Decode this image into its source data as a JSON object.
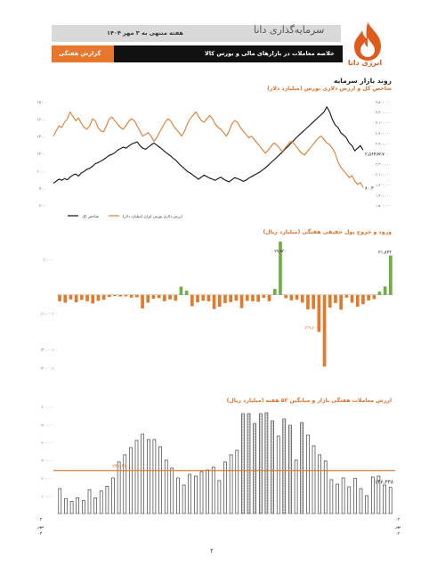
{
  "header": {
    "date_line": "هفته منتهی به ۳ مهر ۱۴۰۴",
    "brand": "سرمایه‌گذاری دانا",
    "report_label": "گزارش هفتگی",
    "title": "خلاصه معاملات در بازارهای مالی و بورس کالا",
    "logo_text": "انرژی دانا"
  },
  "section_title": "روند بازار سرمایه",
  "page_number": "۲",
  "colors": {
    "orange": "#e07b2e",
    "green": "#70ad47",
    "black": "#111111",
    "accent": "#d9722a"
  },
  "chart_data": [
    {
      "type": "line",
      "title": "شاخص کل و ارزش دلاری بورس (میلیارد دلار)",
      "left_ticks": [
        "۱۸۰.۰",
        "۱۶۰.۰",
        "۱۴۰.۰",
        "۱۲۰.۰",
        "۱۰۰.۰",
        "۸۰.۰",
        "۶۰.۰"
      ],
      "left_ylim": [
        60,
        180
      ],
      "right_ticks": [
        "۳,۵۰۰,۰۰۰",
        "۳,۳۰۰,۰۰۰",
        "۳,۱۰۰,۰۰۰",
        "۲,۹۰۰,۰۰۰",
        "۲,۷۰۰,۰۰۰",
        "۲,۵۰۰,۰۰۰",
        "۲,۳۰۰,۰۰۰",
        "۲,۱۰۰,۰۰۰",
        "۱,۹۰۰,۰۰۰",
        "۱,۷۰۰,۰۰۰",
        "۱,۵۰۰,۰۰۰"
      ],
      "right_ylim": [
        1500000,
        3500000
      ],
      "last_labels": {
        "index": "۲,۵۶۴,۲۱۷",
        "dollar": "۸۰.۳"
      },
      "legend": [
        {
          "name": "شاخص کل",
          "color": "#111111"
        },
        {
          "name": "ارزش دلاری بورس ایران (میلیارد دلار)",
          "color": "#e07b2e"
        }
      ],
      "series": [
        {
          "name": "شاخص کل",
          "axis": "right",
          "values": [
            1920000,
            1960000,
            2000000,
            1980000,
            2010000,
            1990000,
            2040000,
            2080000,
            2100000,
            2060000,
            2120000,
            2150000,
            2190000,
            2210000,
            2250000,
            2300000,
            2320000,
            2350000,
            2380000,
            2420000,
            2460000,
            2480000,
            2510000,
            2560000,
            2590000,
            2620000,
            2600000,
            2640000,
            2680000,
            2700000,
            2720000,
            2650000,
            2600000,
            2580000,
            2620000,
            2660000,
            2700000,
            2660000,
            2620000,
            2580000,
            2530000,
            2490000,
            2450000,
            2400000,
            2360000,
            2300000,
            2250000,
            2200000,
            2150000,
            2120000,
            2080000,
            2040000,
            2000000,
            2040000,
            2080000,
            2050000,
            2020000,
            2000000,
            1980000,
            2010000,
            2040000,
            2000000,
            1970000,
            1950000,
            1990000,
            2030000,
            2010000,
            1990000,
            1960000,
            1980000,
            2020000,
            2050000,
            2080000,
            2110000,
            2140000,
            2180000,
            2220000,
            2270000,
            2320000,
            2370000,
            2420000,
            2470000,
            2520000,
            2580000,
            2630000,
            2690000,
            2740000,
            2800000,
            2850000,
            2900000,
            2950000,
            3000000,
            3050000,
            3100000,
            3150000,
            3200000,
            3250000,
            3300000,
            3400000,
            3300000,
            3150000,
            3050000,
            3000000,
            2900000,
            2850000,
            2800000,
            2700000,
            2650000,
            2550000,
            2600000,
            2650000,
            2564217
          ]
        },
        {
          "name": "ارزش دلاری بورس ایران (میلیارد دلار)",
          "axis": "left",
          "values": [
            140,
            146,
            152,
            150,
            156,
            160,
            168,
            163,
            158,
            161,
            155,
            150,
            148,
            152,
            160,
            158,
            150,
            146,
            145,
            152,
            160,
            162,
            158,
            154,
            150,
            148,
            152,
            157,
            160,
            158,
            152,
            146,
            140,
            142,
            144,
            140,
            134,
            138,
            144,
            150,
            156,
            160,
            158,
            152,
            148,
            144,
            140,
            146,
            154,
            160,
            164,
            168,
            163,
            158,
            156,
            160,
            164,
            160,
            154,
            150,
            148,
            144,
            140,
            146,
            154,
            158,
            156,
            150,
            146,
            142,
            138,
            140,
            136,
            132,
            128,
            124,
            120,
            124,
            128,
            132,
            130,
            126,
            122,
            126,
            130,
            134,
            132,
            128,
            124,
            120,
            118,
            122,
            126,
            130,
            134,
            138,
            140,
            136,
            132,
            130,
            126,
            120,
            110,
            104,
            100,
            96,
            92,
            94,
            88,
            84,
            86,
            80.3
          ]
        }
      ]
    },
    {
      "type": "bar",
      "title": "ورود و خروج پول حقیقی هفتگی (میلیارد ریال)",
      "ylim": [
        -50000,
        30000
      ],
      "y_ticks": [
        "۲۰,۰۰۰",
        "(۱۰,۰۰۰)",
        "(۳۰,۰۰۰)",
        "(۴۰,۰۰۰)"
      ],
      "values": [
        -3500,
        -4300,
        -2500,
        -4100,
        -2800,
        -3500,
        -4800,
        -3300,
        -2700,
        -1100,
        -600,
        -900,
        -800,
        -1500,
        -1300,
        -7500,
        -4300,
        -2100,
        -1800,
        -3500,
        -2500,
        -3200,
        4500,
        2300,
        -6200,
        -4100,
        -3200,
        -3600,
        -7800,
        -6500,
        -4500,
        -4000,
        -3200,
        -7300,
        -3300,
        -3500,
        -3800,
        -1600,
        -3500,
        3300,
        29530,
        -1800,
        -3000,
        -2700,
        -4300,
        -8000,
        -7800,
        -20500,
        -39700,
        -7000,
        -4500,
        -8200,
        -1500,
        -4300,
        -6500,
        -5200,
        -3000,
        -2300,
        1800,
        4600,
        21842
      ],
      "labels": {
        "peak": "۲۹,۵۳۰",
        "trough": "(۳۹,۷۰۰)",
        "last": "۲۱,۸۴۲"
      }
    },
    {
      "type": "bar",
      "title": "ارزش معاملات هفتگی بازار و میانگین ۵۲ هفته (میلیارد ریال)",
      "ylim": [
        0,
        600000
      ],
      "y_ticks": [
        "۶۰۰,۰۰۰",
        "۵۰۰,۰۰۰",
        "۴۰۰,۰۰۰",
        "۳۰۰,۰۰۰",
        "۲۰۰,۰۰۰",
        "۱۰۰,۰۰۰"
      ],
      "values": [
        140000,
        84000,
        68000,
        88000,
        72000,
        134000,
        88000,
        126000,
        153000,
        200000,
        290000,
        330000,
        370000,
        410000,
        445000,
        415000,
        415000,
        375000,
        300000,
        255000,
        200000,
        160000,
        220000,
        210000,
        235000,
        245000,
        260000,
        185000,
        290000,
        330000,
        355000,
        560000,
        560000,
        505000,
        560000,
        565000,
        520000,
        435000,
        530000,
        495000,
        300000,
        510000,
        440000,
        380000,
        330000,
        295000,
        190000,
        165000,
        200000,
        150000,
        197000,
        140000,
        100000,
        205000,
        210000,
        160000,
        146338
      ],
      "average": 241360,
      "labels": {
        "average": "۲۴۱,۳۶۰",
        "last": "۱۴۶,۳۳۸"
      },
      "x_labels": {
        "start": [
          "۰۴",
          "مهر",
          "۰۳"
        ],
        "end": [
          "۰۴",
          "مهر",
          "۰۴"
        ]
      }
    }
  ]
}
